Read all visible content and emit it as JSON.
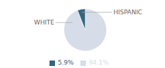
{
  "chart_data": {
    "type": "pie",
    "categories": [
      "WHITE",
      "HISPANIC"
    ],
    "values": [
      94.1,
      5.9
    ],
    "value_labels": [
      "94.1%",
      "5.9%"
    ],
    "colors": [
      "#d6dde8",
      "#34657f"
    ],
    "legend": "bottom"
  }
}
